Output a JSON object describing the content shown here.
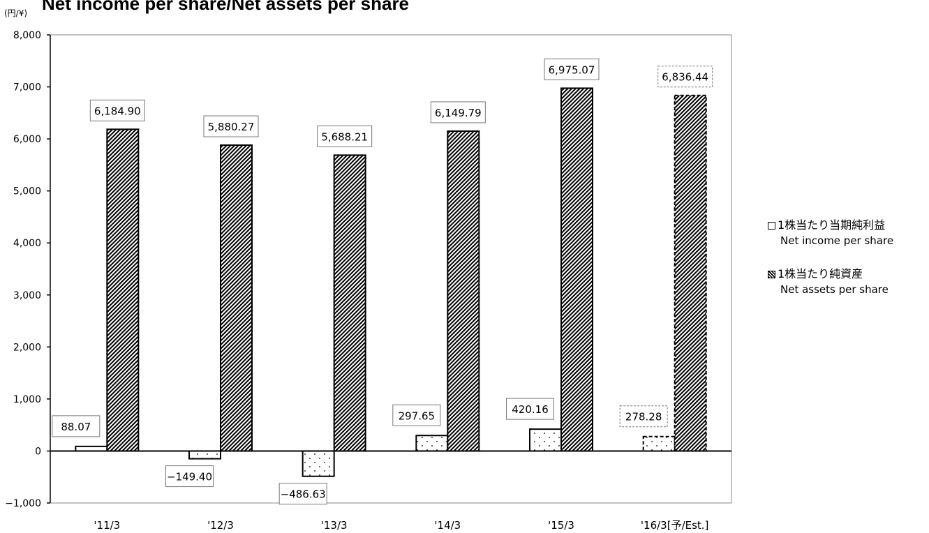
{
  "title": "Net income per share/Net assets per share",
  "unit": "(円/¥)",
  "legend": {
    "income": {
      "jp": "1株当たり当期純利益",
      "en": "Net income per share"
    },
    "assets": {
      "jp": "1株当たり純資産",
      "en": "Net assets per share"
    }
  },
  "chart_data": {
    "type": "bar",
    "categories": [
      "'11/3",
      "'12/3",
      "'13/3",
      "'14/3",
      "'15/3",
      "'16/3[予/Est.]"
    ],
    "series": [
      {
        "name": "1株当たり当期純利益 Net income per share",
        "values": [
          88.07,
          -149.4,
          -486.63,
          297.65,
          420.16,
          278.28
        ]
      },
      {
        "name": "1株当たり純資産 Net assets per share",
        "values": [
          6184.9,
          5880.27,
          5688.21,
          6149.79,
          6975.07,
          6836.44
        ]
      }
    ],
    "data_labels": {
      "income": [
        "88.07",
        "−149.40",
        "−486.63",
        "297.65",
        "420.16",
        "278.28"
      ],
      "assets": [
        "6,184.90",
        "5,880.27",
        "5,688.21",
        "6,149.79",
        "6,975.07",
        "6,836.44"
      ]
    },
    "estimate_category_index": 5,
    "ylim": [
      -1000,
      8000
    ],
    "yticks": [
      -1000,
      0,
      1000,
      2000,
      3000,
      4000,
      5000,
      6000,
      7000,
      8000
    ],
    "ytick_labels": [
      "−1,000",
      "0",
      "1,000",
      "2,000",
      "3,000",
      "4,000",
      "5,000",
      "6,000",
      "7,000",
      "8,000"
    ],
    "legend_position": "right",
    "grid": false
  }
}
